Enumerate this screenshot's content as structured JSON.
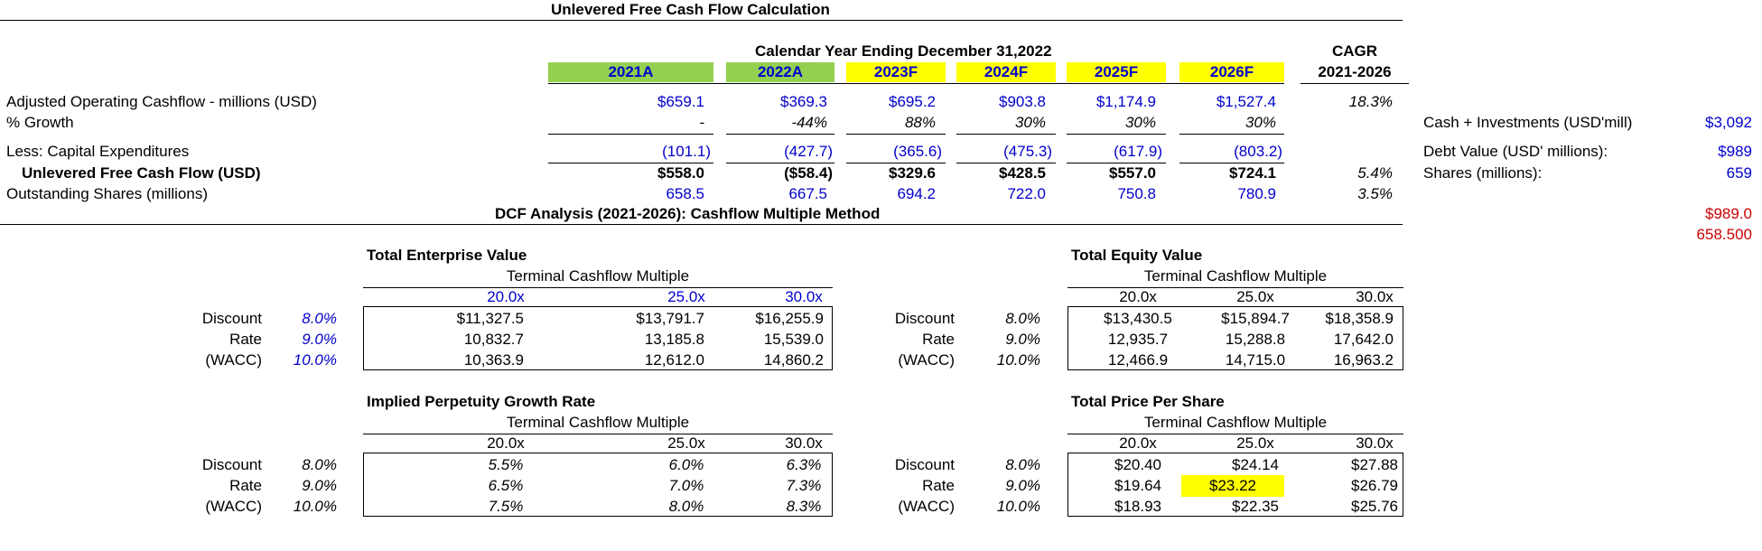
{
  "title": "Unlevered Free Cash Flow Calculation",
  "calendar_header": "Calendar Year Ending December 31,2022",
  "cagr_header": "CAGR",
  "cagr_range": "2021-2026",
  "year_cols": [
    "2021A",
    "2022A",
    "2023F",
    "2024F",
    "2025F",
    "2026F"
  ],
  "year_colors": [
    "#92d050",
    "#92d050",
    "#ffff00",
    "#ffff00",
    "#ffff00",
    "#ffff00"
  ],
  "rows": [
    {
      "label": "Adjusted Operating Cashflow - millions (USD)",
      "values": [
        "$659.1",
        "$369.3",
        "$695.2",
        "$903.8",
        "$1,174.9",
        "$1,527.4"
      ],
      "cagr": "18.3%"
    },
    {
      "label": "% Growth",
      "values": [
        "-",
        "-44%",
        "88%",
        "30%",
        "30%",
        "30%"
      ],
      "cagr": ""
    },
    {
      "label": "Less: Capital Expenditures",
      "values": [
        "(101.1)",
        "(427.7)",
        "(365.6)",
        "(475.3)",
        "(617.9)",
        "(803.2)"
      ],
      "cagr": ""
    },
    {
      "label": "Unlevered Free Cash Flow (USD)",
      "values": [
        "$558.0",
        "($58.4)",
        "$329.6",
        "$428.5",
        "$557.0",
        "$724.1"
      ],
      "cagr": "5.4%"
    },
    {
      "label": "Outstanding Shares (millions)",
      "values": [
        "658.5",
        "667.5",
        "694.2",
        "722.0",
        "750.8",
        "780.9"
      ],
      "cagr": "3.5%"
    }
  ],
  "side": {
    "cash_label": "Cash + Investments (USD'mill)",
    "cash_value": "$3,092",
    "debt_label": "Debt Value (USD' millions):",
    "debt_value": "$989",
    "shares_label": "Shares (millions):",
    "shares_value": "659",
    "red1": "$989.0",
    "red2": "658.500"
  },
  "dcf_title": "DCF Analysis (2021-2026):  Cashflow Multiple Method",
  "row_labels": [
    "Discount",
    "Rate",
    "(WACC)"
  ],
  "rates": [
    "8.0%",
    "9.0%",
    "10.0%"
  ],
  "multiple_label": "Terminal Cashflow Multiple",
  "multiples": [
    "20.0x",
    "25.0x",
    "30.0x"
  ],
  "tev": {
    "title": "Total Enterprise Value",
    "cells": [
      [
        "$11,327.5",
        "$13,791.7",
        "$16,255.9"
      ],
      [
        "10,832.7",
        "13,185.8",
        "15,539.0"
      ],
      [
        "10,363.9",
        "12,612.0",
        "14,860.2"
      ]
    ]
  },
  "teq": {
    "title": "Total Equity Value",
    "cells": [
      [
        "$13,430.5",
        "$15,894.7",
        "$18,358.9"
      ],
      [
        "12,935.7",
        "15,288.8",
        "17,642.0"
      ],
      [
        "12,466.9",
        "14,715.0",
        "16,963.2"
      ]
    ]
  },
  "ipg": {
    "title": "Implied Perpetuity Growth Rate",
    "cells": [
      [
        "5.5%",
        "6.0%",
        "6.3%"
      ],
      [
        "6.5%",
        "7.0%",
        "7.3%"
      ],
      [
        "7.5%",
        "8.0%",
        "8.3%"
      ]
    ]
  },
  "tps": {
    "title": "Total Price Per Share",
    "cells": [
      [
        "$20.40",
        "$24.14",
        "$27.88"
      ],
      [
        "$19.64",
        "$23.22",
        "$26.79"
      ],
      [
        "$18.93",
        "$22.35",
        "$25.76"
      ]
    ]
  }
}
